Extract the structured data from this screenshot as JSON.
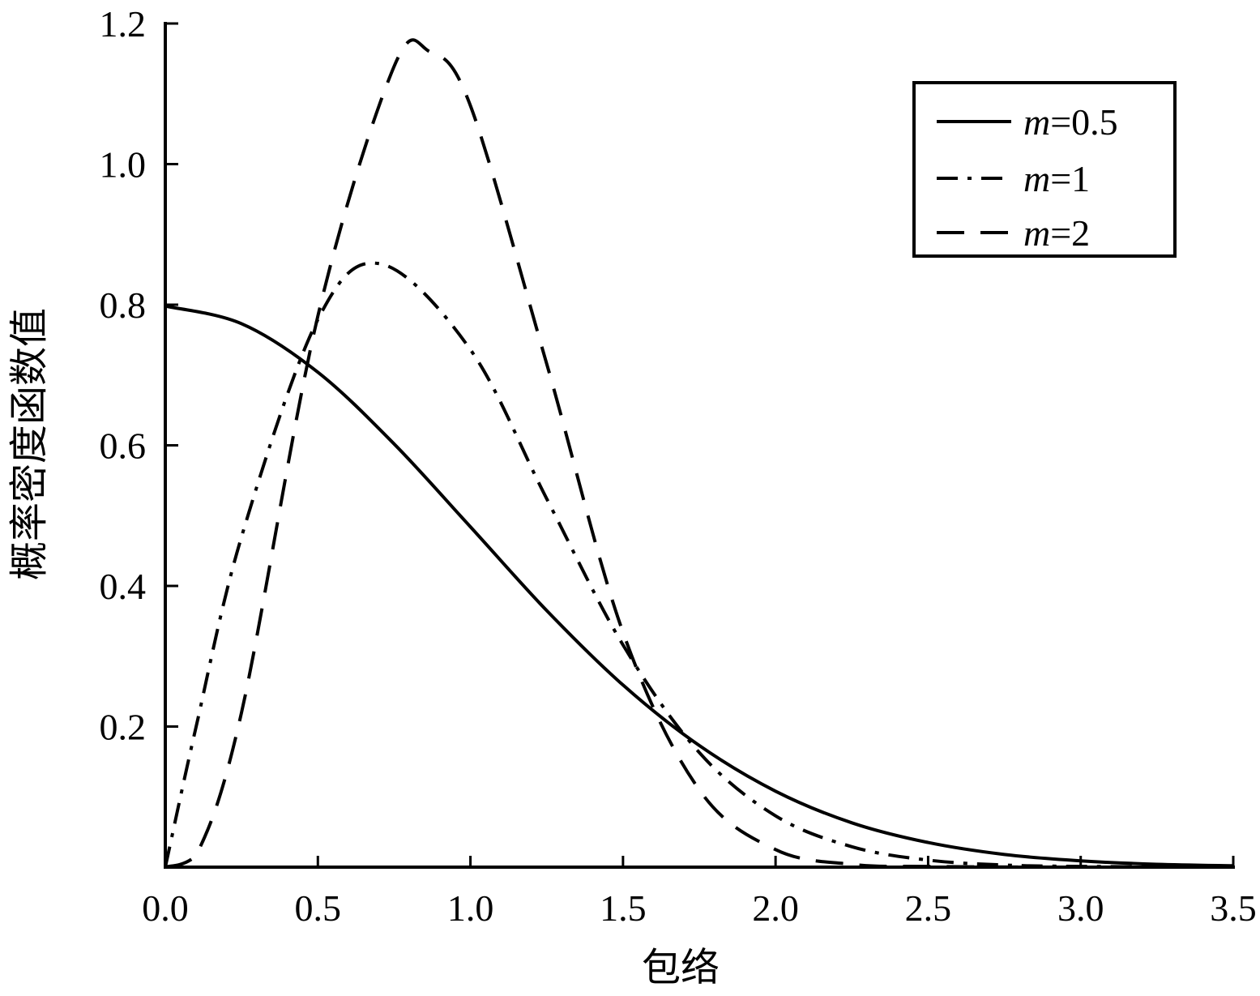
{
  "chart_data": {
    "type": "line",
    "title": "",
    "xlabel": "包络",
    "ylabel": "概率密度函数值",
    "xlim": [
      0,
      3.5
    ],
    "ylim": [
      0,
      1.2
    ],
    "xticks": [
      "0.0",
      "0.5",
      "1.0",
      "1.5",
      "2.0",
      "2.5",
      "3.0",
      "3.5"
    ],
    "yticks": [
      "0.2",
      "0.4",
      "0.6",
      "0.8",
      "1.0",
      "1.2"
    ],
    "grid": false,
    "legend_position": "top-right",
    "series": [
      {
        "name": "m=0.5",
        "legend_var": "m",
        "legend_val": "=0.5",
        "dash": "solid",
        "x": [
          0,
          0.25,
          0.5,
          0.75,
          1.0,
          1.25,
          1.5,
          1.75,
          2.0,
          2.25,
          2.5,
          2.75,
          3.0,
          3.25,
          3.5
        ],
        "y": [
          0.798,
          0.773,
          0.704,
          0.602,
          0.484,
          0.365,
          0.259,
          0.173,
          0.108,
          0.063,
          0.035,
          0.018,
          0.009,
          0.004,
          0.002
        ]
      },
      {
        "name": "m=1",
        "legend_var": "m",
        "legend_val": "=1",
        "dash": "dashdot",
        "x": [
          0,
          0.1,
          0.25,
          0.5,
          0.707,
          1.0,
          1.25,
          1.5,
          1.75,
          2.0,
          2.25,
          2.5,
          2.75,
          3.0,
          3.5
        ],
        "y": [
          0,
          0.198,
          0.47,
          0.779,
          0.858,
          0.736,
          0.524,
          0.316,
          0.163,
          0.073,
          0.029,
          0.01,
          0.003,
          0.001,
          0
        ]
      },
      {
        "name": "m=2",
        "legend_var": "m",
        "legend_val": "=2",
        "dash": "dashed",
        "x": [
          0,
          0.1,
          0.25,
          0.5,
          0.75,
          0.866,
          1.0,
          1.25,
          1.5,
          1.75,
          2.0,
          2.25,
          2.5,
          3.0,
          3.5
        ],
        "y": [
          0,
          0.016,
          0.22,
          0.784,
          1.139,
          1.16,
          1.083,
          0.716,
          0.334,
          0.11,
          0.025,
          0.004,
          0.001,
          0,
          0
        ]
      }
    ]
  }
}
